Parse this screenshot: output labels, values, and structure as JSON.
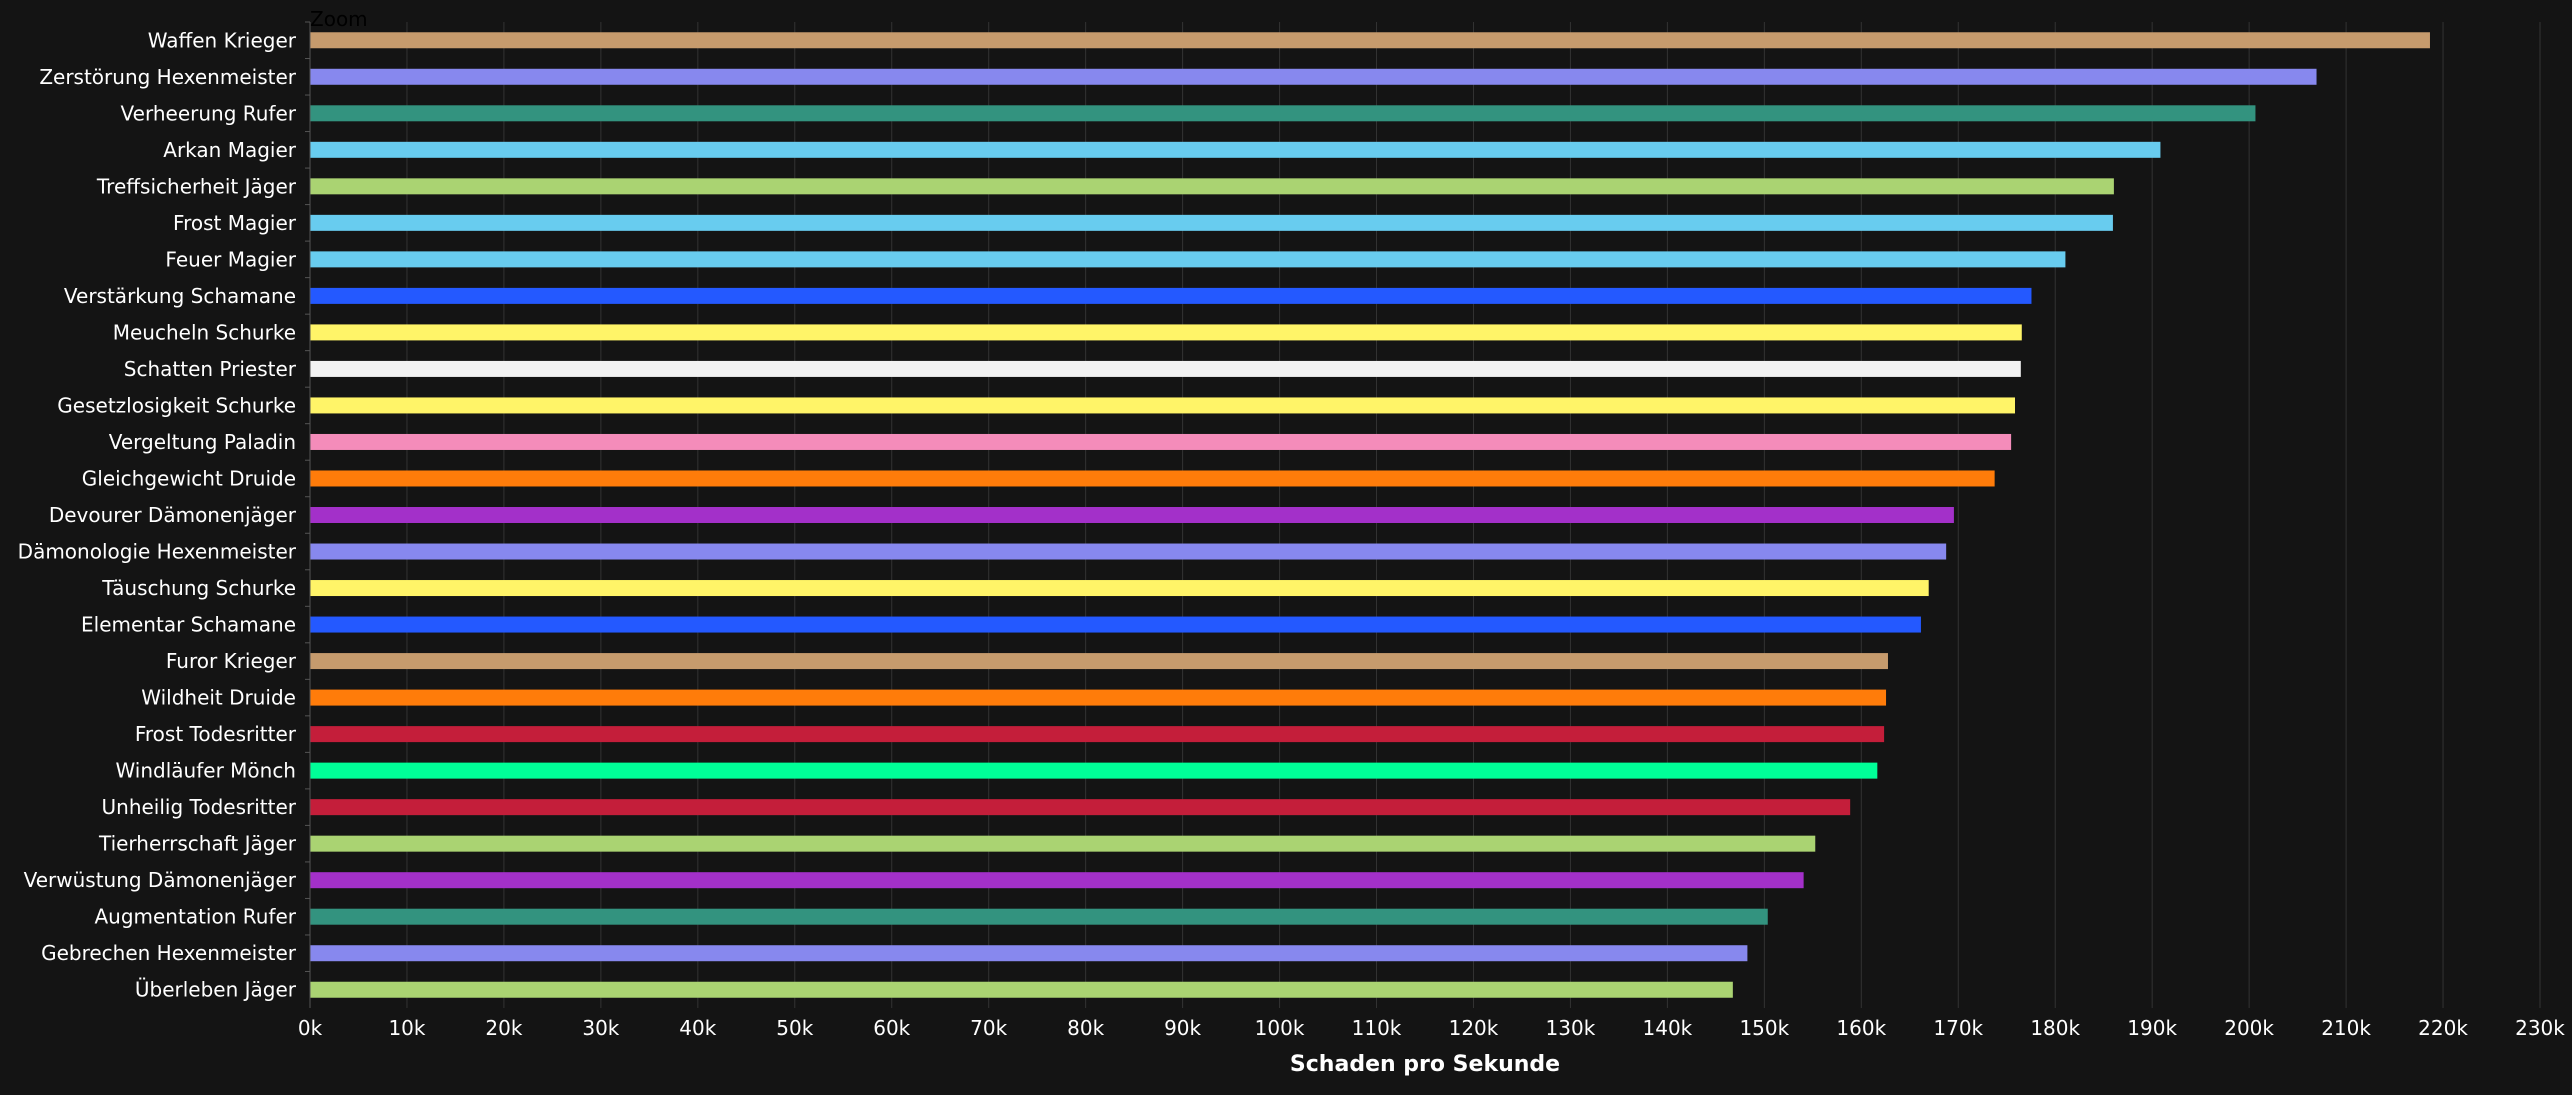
{
  "zoom_label": "Zoom",
  "chart_data": {
    "type": "bar",
    "orientation": "horizontal",
    "xlabel": "Schaden pro Sekunde",
    "xlim": [
      0,
      230000
    ],
    "xtick_step": 10000,
    "xtick_labels": [
      "0k",
      "10k",
      "20k",
      "30k",
      "40k",
      "50k",
      "60k",
      "70k",
      "80k",
      "90k",
      "100k",
      "110k",
      "120k",
      "130k",
      "140k",
      "150k",
      "160k",
      "170k",
      "180k",
      "190k",
      "200k",
      "210k",
      "220k",
      "230k"
    ],
    "grid": true,
    "legend": "none",
    "categories": [
      "Waffen Krieger",
      "Zerstörung Hexenmeister",
      "Verheerung Rufer",
      "Arkan Magier",
      "Treffsicherheit Jäger",
      "Frost Magier",
      "Feuer Magier",
      "Verstärkung Schamane",
      "Meucheln Schurke",
      "Schatten Priester",
      "Gesetzlosigkeit Schurke",
      "Vergeltung Paladin",
      "Gleichgewicht Druide",
      "Devourer Dämonenjäger",
      "Dämonologie Hexenmeister",
      "Täuschung Schurke",
      "Elementar Schamane",
      "Furor Krieger",
      "Wildheit Druide",
      "Frost Todesritter",
      "Windläufer Mönch",
      "Unheilig Todesritter",
      "Tierherrschaft Jäger",
      "Verwüstung Dämonenjäger",
      "Augmentation Rufer",
      "Gebrechen Hexenmeister",
      "Überleben Jäger"
    ],
    "values": [
      218600,
      206900,
      200600,
      190800,
      186000,
      185900,
      181000,
      177500,
      176500,
      176400,
      175800,
      175400,
      173700,
      169500,
      168700,
      166900,
      166100,
      162700,
      162500,
      162300,
      161600,
      158800,
      155200,
      154000,
      150300,
      148200,
      146700
    ],
    "colors": [
      "#C69B6D",
      "#8788EE",
      "#33937F",
      "#68CCEF",
      "#AAD372",
      "#68CCEF",
      "#68CCEF",
      "#2459FF",
      "#FFF468",
      "#F2F2F2",
      "#FFF468",
      "#F48CBA",
      "#FF7C0A",
      "#A330C9",
      "#8788EE",
      "#FFF468",
      "#2459FF",
      "#C69B6D",
      "#FF7C0A",
      "#C41E3A",
      "#00FF98",
      "#C41E3A",
      "#AAD372",
      "#A330C9",
      "#33937F",
      "#8788EE",
      "#AAD372"
    ],
    "style": {
      "background": "#141414",
      "grid_color": "#333333",
      "axis_color": "#555555",
      "text_color": "#FFFFFF"
    }
  }
}
